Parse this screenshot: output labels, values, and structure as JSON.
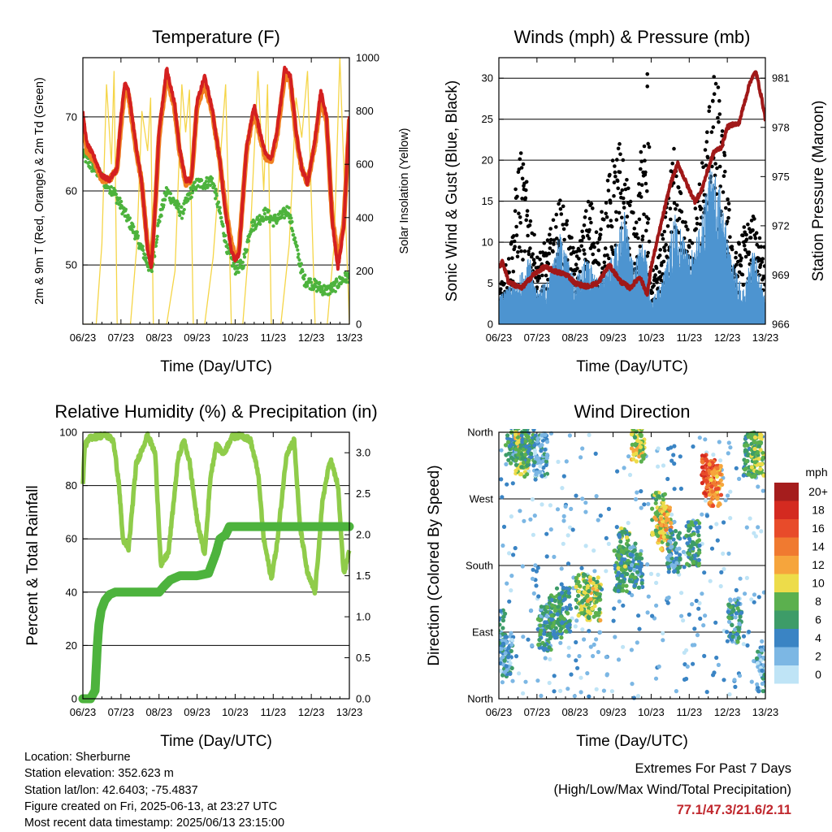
{
  "x_tick_labels": [
    "06/23",
    "07/23",
    "08/23",
    "09/23",
    "10/23",
    "11/23",
    "12/23",
    "13/23"
  ],
  "info": {
    "location": "Location: Sherburne",
    "elevation": "Station elevation: 352.623 m",
    "latlon": "Station lat/lon: 42.6403; -75.4837",
    "created": "Figure created on Fri, 2025-06-13, at 23:27 UTC",
    "recent": "Most recent data timestamp: 2025/06/13 23:15:00"
  },
  "extremes": {
    "title": "Extremes For Past 7 Days",
    "subtitle": "(High/Low/Max Wind/Total Precipitation)",
    "values": "77.1/47.3/21.6/2.11"
  },
  "colors": {
    "t2m": "#d42020",
    "t9m": "#f08020",
    "dewpoint": "#4db33d",
    "solar": "#f5d547",
    "sonic_wind": "#4d94d0",
    "gust": "#000000",
    "pressure": "#a01818",
    "rh": "#8fcc4a",
    "precip": "#4db33d",
    "extremes_text": "#c0272d"
  },
  "chart_data": [
    {
      "type": "line",
      "title": "Temperature (F)",
      "xlabel": "Time (Day/UTC)",
      "ylabel": "2m & 9m T (Red, Orange) & 2m Td (Green)",
      "y2label": "Solar Insolation (Yellow)",
      "xlim": [
        0,
        7
      ],
      "ylim": [
        42,
        78
      ],
      "yticks": [
        50,
        60,
        70
      ],
      "y2lim": [
        0,
        1000
      ],
      "y2ticks": [
        0,
        200,
        400,
        600,
        800,
        1000
      ],
      "series": [
        {
          "key": "t2m",
          "axis": "left",
          "x": [
            0,
            0.1,
            0.3,
            0.5,
            0.7,
            0.9,
            1.0,
            1.1,
            1.2,
            1.4,
            1.55,
            1.7,
            1.8,
            1.9,
            2.0,
            2.2,
            2.4,
            2.55,
            2.7,
            2.85,
            3.0,
            3.2,
            3.4,
            3.6,
            3.75,
            3.9,
            4.0,
            4.1,
            4.3,
            4.5,
            4.65,
            4.8,
            4.95,
            5.1,
            5.3,
            5.45,
            5.6,
            5.75,
            5.9,
            6.1,
            6.25,
            6.4,
            6.55,
            6.7,
            6.85,
            7.0
          ],
          "y": [
            70.5,
            66.5,
            64.5,
            62,
            61.5,
            63,
            70,
            74.5,
            73.5,
            66,
            61,
            52,
            49.5,
            58,
            68,
            76.5,
            72,
            65.5,
            61.5,
            61.5,
            72,
            75.5,
            71,
            64,
            57,
            52,
            50.5,
            51.5,
            66,
            71.5,
            68,
            65,
            64.5,
            68,
            76.5,
            75.5,
            68,
            63,
            61,
            67,
            73.5,
            70,
            56,
            49.5,
            55,
            70
          ]
        },
        {
          "key": "t9m",
          "axis": "left",
          "x": [
            0,
            0.1,
            0.3,
            0.5,
            0.7,
            0.9,
            1.0,
            1.1,
            1.2,
            1.4,
            1.55,
            1.7,
            1.8,
            1.9,
            2.0,
            2.2,
            2.4,
            2.55,
            2.7,
            2.85,
            3.0,
            3.2,
            3.4,
            3.6,
            3.75,
            3.9,
            4.0,
            4.1,
            4.3,
            4.5,
            4.65,
            4.8,
            4.95,
            5.1,
            5.3,
            5.45,
            5.6,
            5.75,
            5.9,
            6.1,
            6.25,
            6.4,
            6.55,
            6.7,
            6.85,
            7.0
          ],
          "y": [
            69.5,
            65.5,
            64,
            61.5,
            61.5,
            63,
            69,
            73.5,
            73,
            65.5,
            61,
            52.5,
            50.5,
            58,
            67.5,
            75.5,
            71.5,
            65,
            61,
            61.5,
            71.5,
            74.5,
            70.5,
            64,
            57.5,
            53,
            51,
            52,
            65.5,
            71,
            67.5,
            64.5,
            64,
            67.5,
            75.5,
            75,
            67.5,
            63,
            61,
            66.5,
            72.5,
            69.5,
            56.5,
            50.5,
            55.5,
            69.5
          ]
        },
        {
          "key": "dewpoint",
          "axis": "left",
          "x": [
            0,
            0.2,
            0.4,
            0.6,
            0.8,
            1.0,
            1.2,
            1.4,
            1.6,
            1.8,
            2.0,
            2.2,
            2.4,
            2.6,
            2.8,
            3.0,
            3.2,
            3.4,
            3.6,
            3.8,
            4.0,
            4.2,
            4.4,
            4.6,
            4.8,
            5.0,
            5.2,
            5.4,
            5.6,
            5.8,
            6.0,
            6.2,
            6.4,
            6.6,
            6.8,
            7.0
          ],
          "y": [
            65,
            63.5,
            62.5,
            61,
            60,
            58,
            56,
            54,
            51.5,
            49,
            56,
            60,
            58.5,
            57,
            59.5,
            61,
            61,
            61.5,
            57,
            52,
            49.5,
            50,
            55,
            56,
            57,
            56,
            56.5,
            57.5,
            52.5,
            48,
            47.5,
            47,
            46.5,
            47,
            48,
            48.5
          ]
        },
        {
          "key": "solar",
          "axis": "right",
          "x": [
            0,
            0.35,
            0.5,
            0.62,
            0.75,
            0.82,
            0.9,
            1.1,
            1.25,
            1.42,
            1.55,
            1.7,
            1.78,
            1.85,
            2.1,
            2.2,
            2.42,
            2.6,
            2.7,
            2.8,
            2.9,
            3.1,
            3.2,
            3.42,
            3.6,
            3.75,
            3.9,
            4.1,
            4.2,
            4.42,
            4.6,
            4.75,
            4.85,
            4.95,
            5.1,
            5.2,
            5.42,
            5.6,
            5.75,
            5.9,
            6.1,
            6.2,
            6.42,
            6.6,
            6.75,
            6.85,
            7.0
          ],
          "y": [
            0,
            0,
            300,
            900,
            600,
            950,
            0,
            0,
            0,
            300,
            800,
            650,
            850,
            0,
            0,
            0,
            200,
            900,
            720,
            880,
            0,
            0,
            0,
            250,
            600,
            900,
            0,
            0,
            0,
            400,
            950,
            500,
            900,
            0,
            0,
            0,
            300,
            850,
            700,
            950,
            0,
            0,
            0,
            300,
            1000,
            600,
            0
          ]
        }
      ]
    },
    {
      "type": "scatter",
      "title": "Winds (mph) & Pressure (mb)",
      "xlabel": "Time (Day/UTC)",
      "ylabel": "Sonic Wind & Gust (Blue, Black)",
      "y2label": "Station Pressure (Maroon)",
      "xlim": [
        0,
        7
      ],
      "ylim": [
        0,
        32.5
      ],
      "yticks": [
        0,
        5,
        10,
        15,
        20,
        25,
        30
      ],
      "y2lim": [
        966,
        982.25
      ],
      "y2ticks": [
        966,
        969,
        972,
        975,
        978,
        981
      ],
      "series": [
        {
          "key": "sonic_wind",
          "axis": "left",
          "x": [
            0,
            0.5,
            0.8,
            1.0,
            1.3,
            1.6,
            2.0,
            2.3,
            2.6,
            3.0,
            3.3,
            3.55,
            3.8,
            4.0,
            4.3,
            4.6,
            5.0,
            5.3,
            5.55,
            5.8,
            6.1,
            6.4,
            6.7,
            7.0
          ],
          "y": [
            2.5,
            4,
            6,
            3,
            4,
            8,
            4,
            6,
            4,
            6,
            10,
            5,
            8,
            2,
            4,
            10,
            6,
            9,
            14,
            12,
            6,
            3,
            7,
            2
          ]
        },
        {
          "key": "gust",
          "axis": "left",
          "x": [
            0,
            0.3,
            0.55,
            0.8,
            1.0,
            1.3,
            1.6,
            1.8,
            2.0,
            2.2,
            2.4,
            2.6,
            2.8,
            3.0,
            3.2,
            3.4,
            3.6,
            3.8,
            4.0,
            4.2,
            4.4,
            4.6,
            4.8,
            5.0,
            5.2,
            5.4,
            5.6,
            5.8,
            6.0,
            6.2,
            6.4,
            6.6,
            6.8,
            7.0
          ],
          "y": [
            4,
            8,
            18.5,
            13,
            7,
            9,
            13,
            11,
            7,
            10,
            14,
            9,
            14,
            17,
            19,
            14,
            10,
            22,
            5,
            7,
            12,
            18,
            13,
            9,
            13,
            19,
            26,
            24,
            14,
            7,
            10,
            11,
            11,
            8
          ]
        },
        {
          "key": "pressure",
          "axis": "right",
          "x": [
            0,
            0.1,
            0.25,
            0.4,
            0.6,
            0.9,
            1.2,
            1.5,
            1.8,
            2.0,
            2.3,
            2.6,
            2.9,
            3.2,
            3.45,
            3.7,
            3.9,
            4.0,
            4.1,
            4.3,
            4.5,
            4.7,
            4.85,
            5.0,
            5.15,
            5.3,
            5.5,
            5.65,
            5.85,
            6.0,
            6.15,
            6.3,
            6.45,
            6.6,
            6.75,
            6.9,
            7.0
          ],
          "y": [
            969.5,
            969.8,
            968.6,
            968.4,
            968.2,
            969,
            969.5,
            969.2,
            969,
            968.5,
            968.3,
            968.5,
            969.6,
            968.6,
            968.2,
            968.9,
            967.8,
            969.5,
            970.5,
            972.5,
            974.5,
            975.8,
            975,
            974.2,
            973.5,
            974,
            975.5,
            976.5,
            976.8,
            978,
            978.2,
            978.2,
            979.5,
            980.8,
            981.4,
            979.8,
            978.5
          ]
        }
      ]
    },
    {
      "type": "line",
      "title": "Relative Humidity (%) & Precipitation (in)",
      "xlabel": "Time (Day/UTC)",
      "ylabel": "Percent & Total Rainfall",
      "xlim": [
        0,
        7
      ],
      "ylim": [
        0,
        100
      ],
      "yticks": [
        0,
        20,
        40,
        60,
        80,
        100
      ],
      "y2lim": [
        0,
        3.25
      ],
      "y2ticks": [
        0.0,
        0.5,
        1.0,
        1.5,
        2.0,
        2.5,
        3.0
      ],
      "series": [
        {
          "key": "rh",
          "axis": "left",
          "x": [
            0,
            0.05,
            0.2,
            0.6,
            0.8,
            0.95,
            1.05,
            1.2,
            1.4,
            1.7,
            1.9,
            2.05,
            2.25,
            2.5,
            2.65,
            2.8,
            3.0,
            3.2,
            3.35,
            3.5,
            3.7,
            3.9,
            4.15,
            4.4,
            4.6,
            4.75,
            4.95,
            5.1,
            5.35,
            5.55,
            5.7,
            5.9,
            6.1,
            6.3,
            6.5,
            6.7,
            6.85,
            7.0
          ],
          "y": [
            80,
            95,
            98,
            99,
            97,
            80,
            60,
            56,
            88,
            99,
            92,
            50,
            55,
            90,
            97,
            89,
            67,
            54,
            83,
            95,
            92,
            98,
            99,
            97,
            85,
            60,
            45,
            58,
            92,
            97,
            65,
            47,
            40,
            75,
            90,
            80,
            47,
            55
          ]
        },
        {
          "key": "precip",
          "axis": "right",
          "x": [
            0,
            0.2,
            0.32,
            0.38,
            0.42,
            0.48,
            0.58,
            0.7,
            0.85,
            1.0,
            1.5,
            2.0,
            2.15,
            2.3,
            2.55,
            3.0,
            3.3,
            3.5,
            3.6,
            3.75,
            3.85,
            4.0,
            4.5,
            5.0,
            6.0,
            7.0
          ],
          "y": [
            0,
            0,
            0.1,
            0.65,
            0.9,
            1.08,
            1.2,
            1.27,
            1.3,
            1.3,
            1.3,
            1.3,
            1.38,
            1.45,
            1.5,
            1.5,
            1.53,
            1.78,
            1.95,
            2.0,
            2.1,
            2.1,
            2.1,
            2.1,
            2.1,
            2.1
          ]
        }
      ]
    },
    {
      "type": "scatter",
      "title": "Wind Direction",
      "xlabel": "Time (Day/UTC)",
      "ylabel": "Direction (Colored By Speed)",
      "xlim": [
        0,
        7
      ],
      "ylim": [
        0,
        360
      ],
      "ytick_labels": [
        "North",
        "East",
        "South",
        "West",
        "North"
      ],
      "colorbar": {
        "title": "mph",
        "labels": [
          "20+",
          "18",
          "16",
          "14",
          "12",
          "10",
          "8",
          "6",
          "4",
          "2",
          "0"
        ],
        "colors": [
          "#a51d1d",
          "#d42a20",
          "#e84b2a",
          "#f07a30",
          "#f6a53c",
          "#eddc4a",
          "#5bb04e",
          "#3d9c68",
          "#3a84c4",
          "#7cb7e4",
          "#bfe4f6"
        ]
      },
      "clusters": [
        {
          "x": 0.0,
          "y": 90,
          "speed": 4
        },
        {
          "x": 0.2,
          "y": 60,
          "speed": 3
        },
        {
          "x": 0.35,
          "y": 345,
          "speed": 5
        },
        {
          "x": 0.6,
          "y": 330,
          "speed": 9
        },
        {
          "x": 0.75,
          "y": 340,
          "speed": 6
        },
        {
          "x": 1.2,
          "y": 95,
          "speed": 5
        },
        {
          "x": 1.1,
          "y": 330,
          "speed": 3
        },
        {
          "x": 1.5,
          "y": 110,
          "speed": 6
        },
        {
          "x": 1.7,
          "y": 120,
          "speed": 6
        },
        {
          "x": 2.2,
          "y": 140,
          "speed": 8
        },
        {
          "x": 2.5,
          "y": 135,
          "speed": 9
        },
        {
          "x": 3.2,
          "y": 175,
          "speed": 6
        },
        {
          "x": 3.3,
          "y": 200,
          "speed": 7
        },
        {
          "x": 3.65,
          "y": 350,
          "speed": 9
        },
        {
          "x": 3.6,
          "y": 180,
          "speed": 5
        },
        {
          "x": 4.2,
          "y": 250,
          "speed": 9
        },
        {
          "x": 4.35,
          "y": 230,
          "speed": 11
        },
        {
          "x": 4.6,
          "y": 200,
          "speed": 4
        },
        {
          "x": 5.1,
          "y": 210,
          "speed": 6
        },
        {
          "x": 5.5,
          "y": 300,
          "speed": 16
        },
        {
          "x": 5.7,
          "y": 290,
          "speed": 13
        },
        {
          "x": 6.2,
          "y": 105,
          "speed": 5
        },
        {
          "x": 6.6,
          "y": 330,
          "speed": 6
        },
        {
          "x": 6.8,
          "y": 330,
          "speed": 8
        },
        {
          "x": 6.95,
          "y": 40,
          "speed": 3
        }
      ]
    }
  ]
}
